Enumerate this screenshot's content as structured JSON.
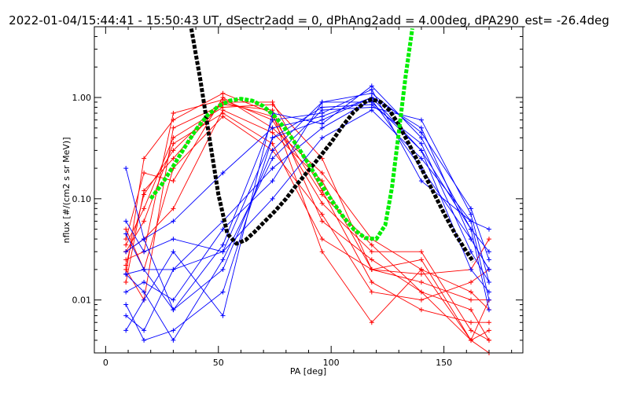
{
  "chart_data": {
    "type": "line",
    "title": "2022-01-04/15:44:41 - 15:50:43 UT, dSectr2add = 0, dPhAng2add = 4.00deg, dPA290_est= -26.4deg",
    "xlabel": "PA [deg]",
    "ylabel": "nflux [#/(cm2 s sr MeV)]",
    "xlim": [
      -5,
      185
    ],
    "ylim": [
      0.003,
      5.0
    ],
    "yscale": "log",
    "grid": false,
    "xticks": [
      {
        "value": 0,
        "label": "0"
      },
      {
        "value": 50,
        "label": "50"
      },
      {
        "value": 100,
        "label": "100"
      },
      {
        "value": 150,
        "label": "150"
      }
    ],
    "yticks": [
      {
        "value": 0.01,
        "label": "0.01"
      },
      {
        "value": 0.1,
        "label": "0.10"
      },
      {
        "value": 1.0,
        "label": "1.00"
      }
    ],
    "x_minor_step": 10,
    "colors": {
      "red": "#ff0000",
      "blue": "#0000ff",
      "black": "#000000",
      "green": "#00ee00"
    },
    "pa_bins": [
      9,
      17,
      30,
      52,
      74,
      96,
      118,
      140,
      162,
      170
    ],
    "series": [
      {
        "color": "red",
        "values": [
          0.03,
          0.06,
          0.35,
          0.7,
          0.35,
          0.04,
          0.02,
          0.015,
          0.01,
          0.01
        ]
      },
      {
        "color": "red",
        "values": [
          0.015,
          0.12,
          0.25,
          0.9,
          0.9,
          0.12,
          0.015,
          0.008,
          0.006,
          0.006
        ]
      },
      {
        "color": "red",
        "values": [
          0.04,
          0.18,
          0.15,
          1.0,
          0.5,
          0.18,
          0.04,
          0.02,
          0.012,
          0.008
        ]
      },
      {
        "color": "red",
        "values": [
          0.02,
          0.01,
          0.5,
          0.85,
          0.75,
          0.06,
          0.025,
          0.012,
          0.008,
          0.004
        ]
      },
      {
        "color": "red",
        "values": [
          0.025,
          0.03,
          0.7,
          0.95,
          0.6,
          0.09,
          0.03,
          0.03,
          0.005,
          0.004
        ]
      },
      {
        "color": "red",
        "values": [
          0.035,
          0.08,
          0.4,
          0.8,
          0.85,
          0.25,
          0.02,
          0.018,
          0.02,
          0.04
        ]
      },
      {
        "color": "red",
        "values": [
          0.05,
          0.02,
          0.2,
          0.65,
          0.3,
          0.07,
          0.012,
          0.01,
          0.015,
          0.02
        ]
      },
      {
        "color": "red",
        "values": [
          0.018,
          0.25,
          0.6,
          1.1,
          0.7,
          0.03,
          0.006,
          0.02,
          0.004,
          0.005
        ]
      },
      {
        "color": "red",
        "values": [
          0.03,
          0.04,
          0.08,
          0.75,
          0.45,
          0.15,
          0.02,
          0.025,
          0.004,
          0.003
        ]
      },
      {
        "color": "red",
        "values": [
          0.022,
          0.11,
          0.3,
          0.9,
          0.65,
          0.11,
          0.035,
          0.012,
          0.004,
          0.01
        ]
      },
      {
        "color": "blue",
        "values": [
          0.045,
          0.02,
          0.02,
          0.03,
          0.4,
          0.6,
          1.0,
          0.3,
          0.05,
          0.03
        ]
      },
      {
        "color": "blue",
        "values": [
          0.018,
          0.02,
          0.008,
          0.02,
          0.3,
          0.9,
          1.1,
          0.45,
          0.08,
          0.025
        ]
      },
      {
        "color": "blue",
        "values": [
          0.007,
          0.005,
          0.02,
          0.06,
          0.2,
          0.5,
          0.95,
          0.2,
          0.04,
          0.02
        ]
      },
      {
        "color": "blue",
        "values": [
          0.03,
          0.04,
          0.008,
          0.035,
          0.6,
          0.7,
          1.2,
          0.15,
          0.06,
          0.01
        ]
      },
      {
        "color": "blue",
        "values": [
          0.009,
          0.004,
          0.005,
          0.012,
          0.4,
          0.8,
          0.85,
          0.35,
          0.03,
          0.015
        ]
      },
      {
        "color": "blue",
        "values": [
          0.06,
          0.03,
          0.04,
          0.03,
          0.1,
          0.4,
          0.75,
          0.25,
          0.06,
          0.05
        ]
      },
      {
        "color": "blue",
        "values": [
          0.2,
          0.04,
          0.06,
          0.18,
          0.5,
          0.65,
          1.0,
          0.5,
          0.04,
          0.02
        ]
      },
      {
        "color": "blue",
        "values": [
          0.012,
          0.015,
          0.01,
          0.05,
          0.15,
          0.9,
          0.9,
          0.3,
          0.02,
          0.012
        ]
      },
      {
        "color": "blue",
        "values": [
          0.005,
          0.01,
          0.03,
          0.007,
          0.7,
          0.55,
          1.3,
          0.4,
          0.05,
          0.008
        ]
      },
      {
        "color": "blue",
        "values": [
          0.018,
          0.012,
          0.004,
          0.025,
          0.25,
          0.75,
          0.8,
          0.6,
          0.07,
          0.015
        ]
      }
    ],
    "fits": [
      {
        "color": "black",
        "points": [
          [
            38,
            4.8
          ],
          [
            42,
            1.5
          ],
          [
            46,
            0.4
          ],
          [
            50,
            0.11
          ],
          [
            54,
            0.045
          ],
          [
            58,
            0.036
          ],
          [
            62,
            0.039
          ],
          [
            66,
            0.047
          ],
          [
            70,
            0.058
          ],
          [
            75,
            0.075
          ],
          [
            80,
            0.1
          ],
          [
            85,
            0.14
          ],
          [
            90,
            0.19
          ],
          [
            95,
            0.26
          ],
          [
            100,
            0.36
          ],
          [
            105,
            0.52
          ],
          [
            110,
            0.72
          ],
          [
            115,
            0.9
          ],
          [
            118,
            0.96
          ],
          [
            122,
            0.9
          ],
          [
            126,
            0.74
          ],
          [
            130,
            0.54
          ],
          [
            135,
            0.33
          ],
          [
            140,
            0.2
          ],
          [
            145,
            0.12
          ],
          [
            150,
            0.072
          ],
          [
            155,
            0.045
          ],
          [
            160,
            0.03
          ],
          [
            163,
            0.024
          ]
        ]
      },
      {
        "color": "green",
        "points": [
          [
            20,
            0.1
          ],
          [
            25,
            0.14
          ],
          [
            30,
            0.21
          ],
          [
            35,
            0.32
          ],
          [
            40,
            0.48
          ],
          [
            45,
            0.66
          ],
          [
            50,
            0.82
          ],
          [
            55,
            0.93
          ],
          [
            60,
            0.97
          ],
          [
            65,
            0.93
          ],
          [
            70,
            0.82
          ],
          [
            75,
            0.65
          ],
          [
            80,
            0.48
          ],
          [
            85,
            0.33
          ],
          [
            90,
            0.22
          ],
          [
            95,
            0.145
          ],
          [
            100,
            0.098
          ],
          [
            105,
            0.068
          ],
          [
            110,
            0.05
          ],
          [
            115,
            0.041
          ],
          [
            120,
            0.04
          ],
          [
            124,
            0.055
          ],
          [
            127,
            0.13
          ],
          [
            130,
            0.45
          ],
          [
            133,
            1.6
          ],
          [
            136,
            4.8
          ]
        ]
      }
    ]
  }
}
